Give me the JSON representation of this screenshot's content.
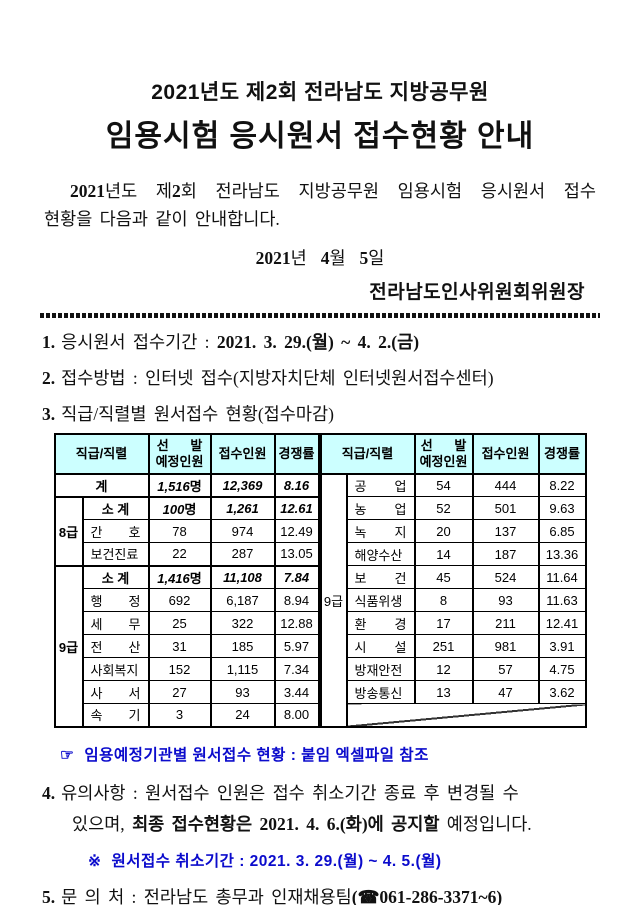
{
  "doc": {
    "title_line1": "2021년도 제2회 전라남도 지방공무원",
    "title_line2": "임용시험 응시원서 접수현황 안내",
    "intro": {
      "b1": "2021",
      "t1": "년도 제",
      "b2": "2",
      "t2": "회 전라남도 지방공무원 임용시험 응시원서 접수",
      "line2": "현황을 다음과 같이 안내합니다."
    },
    "date": {
      "y": "2021",
      "ys": "년",
      "m": "4",
      "ms": "월",
      "d": "5",
      "ds": "일"
    },
    "signature": "전라남도인사위원회위원장"
  },
  "items": {
    "i1_no": "1.",
    "i1_label": "응시원서 접수기간 :",
    "i1_value": "2021. 3. 29.(월) ~ 4. 2.(금)",
    "i2_no": "2.",
    "i2_text": "접수방법 : 인터넷 접수(지방자치단체 인터넷원서접수센터)",
    "i3_no": "3.",
    "i3_text": "직급/직렬별 원서접수 현황(접수마감)",
    "i4_no": "4.",
    "i4_line1": "유의사항 : 원서접수 인원은 접수 취소기간 종료 후 변경될 수",
    "i4_line2_pre": "있으며, ",
    "i4_line2_bold": "최종 접수현황은 2021. 4. 6.(화)에 공지할",
    "i4_line2_post": " 예정입니다.",
    "i5_no": "5.",
    "i5_text": "문 의 처 : 전라남도 총무과 인재채용팀",
    "i5_phone": "(☎061-286-3371~6)"
  },
  "notes": {
    "excel_icon": "☞",
    "excel_text": "임용예정기관별 원서접수 현황 : 붙임 엑셀파일 참조",
    "cancel_icon": "※",
    "cancel_text": "원서접수 취소기간 : 2021. 3. 29.(월) ~ 4. 5.(월)"
  },
  "table": {
    "header": {
      "rank": "직급/직렬",
      "planned_1": "선      발",
      "planned_2": "예정인원",
      "applicants": "접수인원",
      "ratio": "경쟁률"
    },
    "left": {
      "rows": [
        {
          "type": "total",
          "label": "계",
          "planned": "1,516명",
          "applicants": "12,369",
          "ratio": "8.16"
        },
        {
          "type": "subtotal",
          "group": "8급",
          "group_span": 3,
          "label": "소 계",
          "planned": "100명",
          "applicants": "1,261",
          "ratio": "12.61"
        },
        {
          "type": "normal",
          "label": "간 호",
          "planned": "78",
          "applicants": "974",
          "ratio": "12.49"
        },
        {
          "type": "normal",
          "label": "보건진료",
          "planned": "22",
          "applicants": "287",
          "ratio": "13.05"
        },
        {
          "type": "subtotal",
          "group": "9급",
          "group_span": 7,
          "label": "소 계",
          "planned": "1,416명",
          "applicants": "11,108",
          "ratio": "7.84"
        },
        {
          "type": "normal",
          "label": "행 정",
          "planned": "692",
          "applicants": "6,187",
          "ratio": "8.94"
        },
        {
          "type": "normal",
          "label": "세 무",
          "planned": "25",
          "applicants": "322",
          "ratio": "12.88"
        },
        {
          "type": "normal",
          "label": "전 산",
          "planned": "31",
          "applicants": "185",
          "ratio": "5.97"
        },
        {
          "type": "normal",
          "label": "사회복지",
          "planned": "152",
          "applicants": "1,115",
          "ratio": "7.34"
        },
        {
          "type": "normal",
          "label": "사 서",
          "planned": "27",
          "applicants": "93",
          "ratio": "3.44"
        },
        {
          "type": "normal",
          "label": "속 기",
          "planned": "3",
          "applicants": "24",
          "ratio": "8.00"
        }
      ]
    },
    "right": {
      "rows": [
        {
          "type": "normal",
          "group": "9급",
          "group_span": 11,
          "label": "공 업",
          "planned": "54",
          "applicants": "444",
          "ratio": "8.22"
        },
        {
          "type": "normal",
          "label": "농 업",
          "planned": "52",
          "applicants": "501",
          "ratio": "9.63"
        },
        {
          "type": "normal",
          "label": "녹 지",
          "planned": "20",
          "applicants": "137",
          "ratio": "6.85"
        },
        {
          "type": "normal",
          "label": "해양수산",
          "planned": "14",
          "applicants": "187",
          "ratio": "13.36"
        },
        {
          "type": "normal",
          "label": "보 건",
          "planned": "45",
          "applicants": "524",
          "ratio": "11.64"
        },
        {
          "type": "normal",
          "label": "식품위생",
          "planned": "8",
          "applicants": "93",
          "ratio": "11.63"
        },
        {
          "type": "normal",
          "label": "환 경",
          "planned": "17",
          "applicants": "211",
          "ratio": "12.41"
        },
        {
          "type": "normal",
          "label": "시 설",
          "planned": "251",
          "applicants": "981",
          "ratio": "3.91"
        },
        {
          "type": "normal",
          "label": "방재안전",
          "planned": "12",
          "applicants": "57",
          "ratio": "4.75"
        },
        {
          "type": "normal",
          "label": "방송통신",
          "planned": "13",
          "applicants": "47",
          "ratio": "3.62"
        },
        {
          "type": "diagonal"
        }
      ]
    }
  },
  "colors": {
    "accent_blue": "#0b0bcc",
    "table_header_bg": "#ccffff",
    "border": "#000000"
  }
}
